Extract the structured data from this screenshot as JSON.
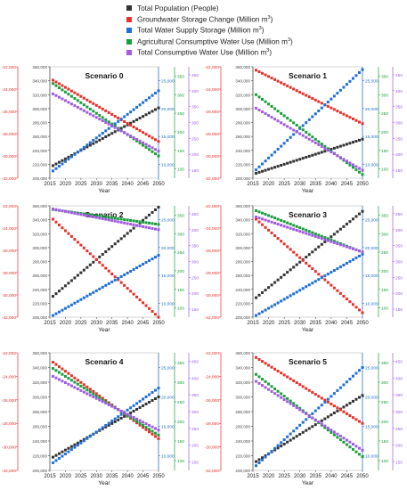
{
  "legend": {
    "items": [
      {
        "label": "Total Population (People)",
        "sup": "",
        "color": "#333333"
      },
      {
        "label": "Groundwater Storage Change (Million m",
        "sup": "3",
        "tail": ")",
        "color": "#e8302a"
      },
      {
        "label": "Total Water Supply Storage (Million m",
        "sup": "3",
        "tail": ")",
        "color": "#1f6fd6"
      },
      {
        "label": "Agricultural Consumptive Water Use (Million m",
        "sup": "3",
        "tail": ")",
        "color": "#1a9e3c"
      },
      {
        "label": "Total Consumptive Water Use (Million m",
        "sup": "3",
        "tail": ")",
        "color": "#a05be0"
      }
    ]
  },
  "colors": {
    "population": "#333333",
    "groundwater": "#e8302a",
    "supply": "#1f6fd6",
    "agricultural": "#1a9e3c",
    "consumptive": "#a05be0"
  },
  "chart_data": [
    {
      "type": "scatter",
      "title": "Scenario 0",
      "xlabel": "Year",
      "x_ticks": [
        "2015",
        "2020",
        "2025",
        "2030",
        "2035",
        "2040",
        "2045",
        "2050"
      ],
      "x_range": [
        2015,
        2050
      ],
      "axes": [
        {
          "name": "groundwater",
          "side": "left-outer",
          "range": [
            -32000,
            -22000
          ],
          "ticks": [
            "-22,000",
            "-24,000",
            "-26,000",
            "-28,000",
            "-30,000",
            "-32,000"
          ]
        },
        {
          "name": "population",
          "side": "left-inner",
          "range": [
            200000,
            360000
          ],
          "ticks": [
            "360,000",
            "340,000",
            "320,000",
            "300,000",
            "280,000",
            "260,000",
            "240,000",
            "220,000",
            "200,000"
          ]
        },
        {
          "name": "supply",
          "side": "right-inner",
          "range": [
            7500,
            27500
          ],
          "ticks": [
            "25,000",
            "20,000",
            "15,000",
            "10,000"
          ]
        },
        {
          "name": "agricultural",
          "side": "right-middle",
          "range": [
            75,
            375
          ],
          "ticks": [
            "350",
            "300",
            "250",
            "200",
            "150",
            "100"
          ]
        },
        {
          "name": "consumptive",
          "side": "right-outer",
          "range": [
            125,
            475
          ],
          "ticks": [
            "450",
            "400",
            "350",
            "300",
            "250",
            "200",
            "150"
          ]
        }
      ],
      "series": [
        {
          "key": "population",
          "start": 218000,
          "end": 301000
        },
        {
          "key": "groundwater",
          "start": -23200,
          "end": -28700
        },
        {
          "key": "supply",
          "start": 8800,
          "end": 23200
        },
        {
          "key": "agricultural",
          "start": 330,
          "end": 135
        },
        {
          "key": "consumptive",
          "start": 390,
          "end": 210
        }
      ]
    },
    {
      "type": "scatter",
      "title": "Scenario 1",
      "xlabel": "Year",
      "x_ticks": [
        "2015",
        "2020",
        "2025",
        "2030",
        "2035",
        "2040",
        "2045",
        "2050"
      ],
      "x_range": [
        2015,
        2050
      ],
      "axes": [
        {
          "name": "groundwater",
          "side": "left-outer",
          "range": [
            -32000,
            -22000
          ],
          "ticks": [
            "-22,000",
            "-24,000",
            "-26,000",
            "-28,000",
            "-30,000",
            "-32,000"
          ]
        },
        {
          "name": "population",
          "side": "left-inner",
          "range": [
            200000,
            360000
          ],
          "ticks": [
            "360,000",
            "340,000",
            "320,000",
            "300,000",
            "280,000",
            "260,000",
            "240,000",
            "220,000",
            "200,000"
          ]
        },
        {
          "name": "supply",
          "side": "right-inner",
          "range": [
            7500,
            27500
          ],
          "ticks": [
            "25,000",
            "20,000",
            "15,000",
            "10,000"
          ]
        },
        {
          "name": "agricultural",
          "side": "right-middle",
          "range": [
            75,
            375
          ],
          "ticks": [
            "350",
            "300",
            "250",
            "200",
            "150",
            "100"
          ]
        },
        {
          "name": "consumptive",
          "side": "right-outer",
          "range": [
            125,
            475
          ],
          "ticks": [
            "450",
            "400",
            "350",
            "300",
            "250",
            "200",
            "150"
          ]
        }
      ],
      "series": [
        {
          "key": "population",
          "start": 207000,
          "end": 256000
        },
        {
          "key": "groundwater",
          "start": -22300,
          "end": -27100
        },
        {
          "key": "supply",
          "start": 9000,
          "end": 27000
        },
        {
          "key": "agricultural",
          "start": 300,
          "end": 85
        },
        {
          "key": "consumptive",
          "start": 345,
          "end": 150
        }
      ]
    },
    {
      "type": "scatter",
      "title": "Scenario 2",
      "xlabel": "Year",
      "x_ticks": [
        "2015",
        "2020",
        "2025",
        "2030",
        "2035",
        "2040",
        "2045",
        "2050"
      ],
      "x_range": [
        2015,
        2050
      ],
      "axes": [
        {
          "name": "groundwater",
          "side": "left-outer",
          "range": [
            -32000,
            -22000
          ],
          "ticks": [
            "-22,000",
            "-24,000",
            "-26,000",
            "-28,000",
            "-30,000",
            "-32,000"
          ]
        },
        {
          "name": "population",
          "side": "left-inner",
          "range": [
            200000,
            360000
          ],
          "ticks": [
            "360,000",
            "340,000",
            "320,000",
            "300,000",
            "280,000",
            "260,000",
            "240,000",
            "220,000",
            "200,000"
          ]
        },
        {
          "name": "supply",
          "side": "right-inner",
          "range": [
            7500,
            27500
          ],
          "ticks": [
            "25,000",
            "20,000",
            "15,000",
            "10,000"
          ]
        },
        {
          "name": "agricultural",
          "side": "right-middle",
          "range": [
            75,
            375
          ],
          "ticks": [
            "350",
            "300",
            "250",
            "200",
            "150",
            "100"
          ]
        },
        {
          "name": "consumptive",
          "side": "right-outer",
          "range": [
            125,
            475
          ],
          "ticks": [
            "450",
            "400",
            "350",
            "300",
            "250",
            "200",
            "150"
          ]
        }
      ],
      "series": [
        {
          "key": "population",
          "start": 230000,
          "end": 358000
        },
        {
          "key": "groundwater",
          "start": -23200,
          "end": -32000
        },
        {
          "key": "supply",
          "start": 7800,
          "end": 18600
        },
        {
          "key": "agricultural",
          "start": 365,
          "end": 325
        },
        {
          "key": "consumptive",
          "start": 465,
          "end": 400
        }
      ]
    },
    {
      "type": "scatter",
      "title": "Scenario 3",
      "xlabel": "Year",
      "x_ticks": [
        "2015",
        "2020",
        "2025",
        "2030",
        "2035",
        "2040",
        "2045",
        "2050"
      ],
      "x_range": [
        2015,
        2050
      ],
      "axes": [
        {
          "name": "groundwater",
          "side": "left-outer",
          "range": [
            -32000,
            -22000
          ],
          "ticks": [
            "-22,000",
            "-24,000",
            "-26,000",
            "-28,000",
            "-30,000",
            "-32,000"
          ]
        },
        {
          "name": "population",
          "side": "left-inner",
          "range": [
            200000,
            360000
          ],
          "ticks": [
            "360,000",
            "340,000",
            "320,000",
            "300,000",
            "280,000",
            "260,000",
            "240,000",
            "220,000",
            "200,000"
          ]
        },
        {
          "name": "supply",
          "side": "right-inner",
          "range": [
            7500,
            27500
          ],
          "ticks": [
            "25,000",
            "20,000",
            "15,000",
            "10,000"
          ]
        },
        {
          "name": "agricultural",
          "side": "right-middle",
          "range": [
            75,
            375
          ],
          "ticks": [
            "350",
            "300",
            "250",
            "200",
            "150",
            "100"
          ]
        },
        {
          "name": "consumptive",
          "side": "right-outer",
          "range": [
            125,
            475
          ],
          "ticks": [
            "450",
            "400",
            "350",
            "300",
            "250",
            "200",
            "150"
          ]
        }
      ],
      "series": [
        {
          "key": "population",
          "start": 228000,
          "end": 352000
        },
        {
          "key": "groundwater",
          "start": -23200,
          "end": -31600
        },
        {
          "key": "supply",
          "start": 7800,
          "end": 18800
        },
        {
          "key": "agricultural",
          "start": 362,
          "end": 250
        },
        {
          "key": "consumptive",
          "start": 440,
          "end": 330
        }
      ]
    },
    {
      "type": "scatter",
      "title": "Scenario 4",
      "xlabel": "Year",
      "x_ticks": [
        "2015",
        "2020",
        "2025",
        "2030",
        "2035",
        "2040",
        "2045",
        "2050"
      ],
      "x_range": [
        2015,
        2050
      ],
      "axes": [
        {
          "name": "groundwater",
          "side": "left-outer",
          "range": [
            -32000,
            -22000
          ],
          "ticks": [
            "-22,000",
            "-24,000",
            "-26,000",
            "-28,000",
            "-30,000",
            "-32,000"
          ]
        },
        {
          "name": "population",
          "side": "left-inner",
          "range": [
            200000,
            360000
          ],
          "ticks": [
            "360,000",
            "340,000",
            "320,000",
            "300,000",
            "280,000",
            "260,000",
            "240,000",
            "220,000",
            "200,000"
          ]
        },
        {
          "name": "supply",
          "side": "right-inner",
          "range": [
            7500,
            27500
          ],
          "ticks": [
            "25,000",
            "20,000",
            "15,000",
            "10,000"
          ]
        },
        {
          "name": "agricultural",
          "side": "right-middle",
          "range": [
            75,
            375
          ],
          "ticks": [
            "350",
            "300",
            "250",
            "200",
            "150",
            "100"
          ]
        },
        {
          "name": "consumptive",
          "side": "right-outer",
          "range": [
            125,
            475
          ],
          "ticks": [
            "450",
            "400",
            "350",
            "300",
            "250",
            "200",
            "150"
          ]
        }
      ],
      "series": [
        {
          "key": "population",
          "start": 218000,
          "end": 300000
        },
        {
          "key": "groundwater",
          "start": -22800,
          "end": -29300
        },
        {
          "key": "supply",
          "start": 8800,
          "end": 21500
        },
        {
          "key": "agricultural",
          "start": 335,
          "end": 165
        },
        {
          "key": "consumptive",
          "start": 405,
          "end": 245
        }
      ]
    },
    {
      "type": "scatter",
      "title": "Scenario 5",
      "xlabel": "Year",
      "x_ticks": [
        "2015",
        "2020",
        "2025",
        "2030",
        "2035",
        "2040",
        "2045",
        "2050"
      ],
      "x_range": [
        2015,
        2050
      ],
      "axes": [
        {
          "name": "groundwater",
          "side": "left-outer",
          "range": [
            -32000,
            -22000
          ],
          "ticks": [
            "-22,000",
            "-24,000",
            "-26,000",
            "-28,000",
            "-30,000",
            "-32,000"
          ]
        },
        {
          "name": "population",
          "side": "left-inner",
          "range": [
            200000,
            360000
          ],
          "ticks": [
            "360,000",
            "340,000",
            "320,000",
            "300,000",
            "280,000",
            "260,000",
            "240,000",
            "220,000",
            "200,000"
          ]
        },
        {
          "name": "supply",
          "side": "right-inner",
          "range": [
            7500,
            27500
          ],
          "ticks": [
            "25,000",
            "20,000",
            "15,000",
            "10,000"
          ]
        },
        {
          "name": "agricultural",
          "side": "right-middle",
          "range": [
            75,
            375
          ],
          "ticks": [
            "350",
            "300",
            "250",
            "200",
            "150",
            "100"
          ]
        },
        {
          "name": "consumptive",
          "side": "right-outer",
          "range": [
            125,
            475
          ],
          "ticks": [
            "450",
            "400",
            "350",
            "300",
            "250",
            "200",
            "150"
          ]
        }
      ],
      "series": [
        {
          "key": "population",
          "start": 212000,
          "end": 302000
        },
        {
          "key": "groundwater",
          "start": -22400,
          "end": -28000
        },
        {
          "key": "supply",
          "start": 8300,
          "end": 25000
        },
        {
          "key": "agricultural",
          "start": 320,
          "end": 110
        },
        {
          "key": "consumptive",
          "start": 390,
          "end": 185
        }
      ]
    }
  ]
}
